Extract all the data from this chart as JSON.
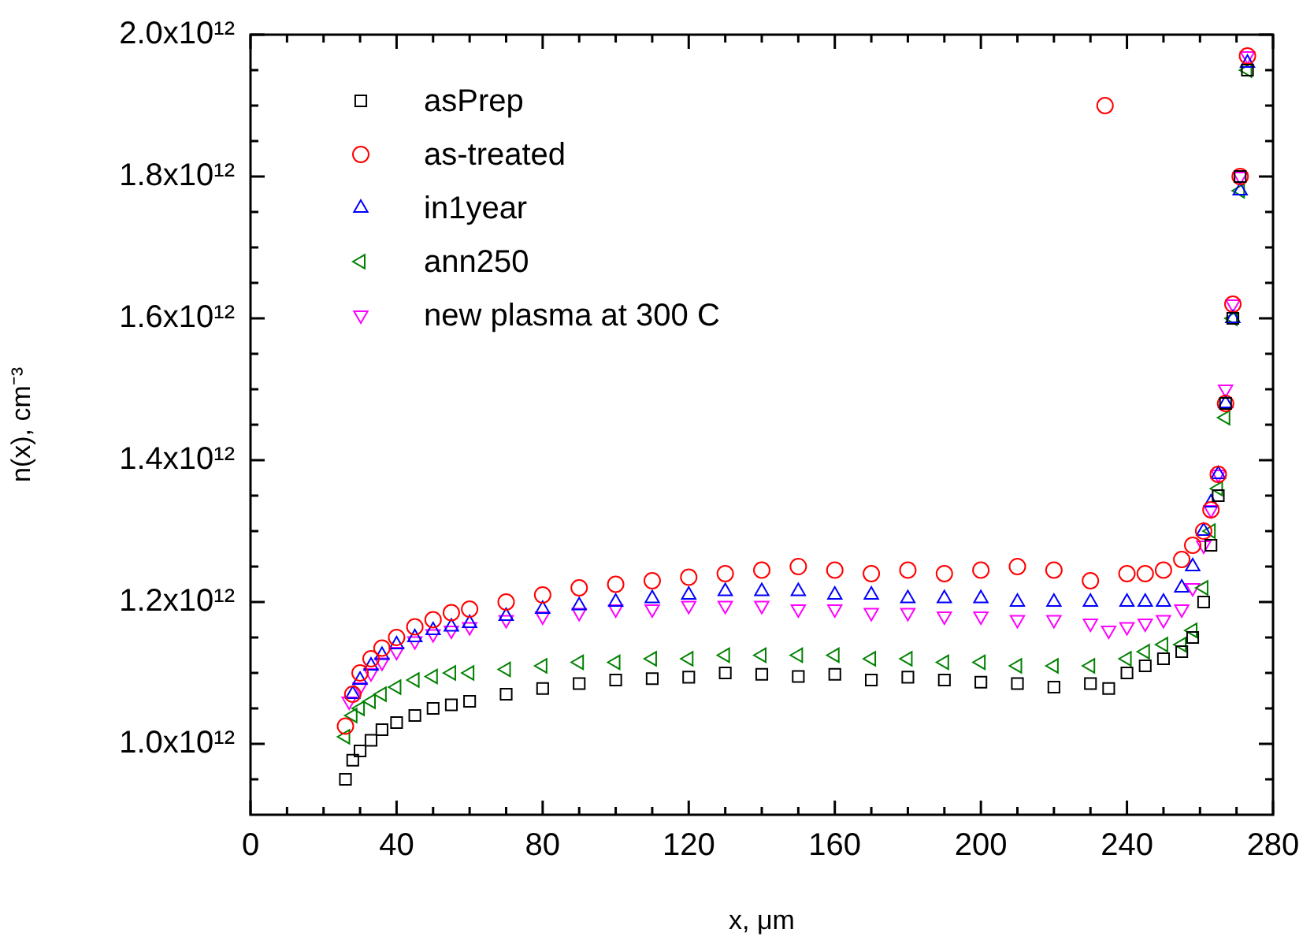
{
  "chart_data": {
    "type": "scatter",
    "xlabel": "x, μm",
    "ylabel": "n(x), cm⁻³",
    "xlim": [
      0,
      280
    ],
    "xticks": [
      0,
      40,
      80,
      120,
      160,
      200,
      240,
      280
    ],
    "ylim": [
      900000000000.0,
      2000000000000.0
    ],
    "yticks": [
      {
        "value": 1000000000000.0,
        "label": "1.0x10¹²"
      },
      {
        "value": 1200000000000.0,
        "label": "1.2x10¹²"
      },
      {
        "value": 1400000000000.0,
        "label": "1.4x10¹²"
      },
      {
        "value": 1600000000000.0,
        "label": "1.6x10¹²"
      },
      {
        "value": 1800000000000.0,
        "label": "1.8x10¹²"
      },
      {
        "value": 2000000000000.0,
        "label": "2.0x10¹²"
      }
    ],
    "grid": false,
    "legend": "top left",
    "series": [
      {
        "name": "asPrep",
        "color": "#000000",
        "marker": "square",
        "x": [
          26,
          28,
          30,
          33,
          36,
          40,
          45,
          50,
          55,
          60,
          70,
          80,
          90,
          100,
          110,
          120,
          130,
          140,
          150,
          160,
          170,
          180,
          190,
          200,
          210,
          220,
          230,
          235,
          240,
          245,
          250,
          255,
          258,
          261,
          263,
          265,
          267,
          269,
          271,
          273
        ],
        "values": [
          950000000000.0,
          977000000000.0,
          990000000000.0,
          1005000000000.0,
          1020000000000.0,
          1030000000000.0,
          1040000000000.0,
          1050000000000.0,
          1055000000000.0,
          1060000000000.0,
          1070000000000.0,
          1078000000000.0,
          1085000000000.0,
          1090000000000.0,
          1092000000000.0,
          1094000000000.0,
          1100000000000.0,
          1098000000000.0,
          1095000000000.0,
          1098000000000.0,
          1090000000000.0,
          1094000000000.0,
          1090000000000.0,
          1087000000000.0,
          1085000000000.0,
          1080000000000.0,
          1085000000000.0,
          1078000000000.0,
          1100000000000.0,
          1110000000000.0,
          1120000000000.0,
          1130000000000.0,
          1150000000000.0,
          1200000000000.0,
          1280000000000.0,
          1350000000000.0,
          1480000000000.0,
          1600000000000.0,
          1800000000000.0,
          1950000000000.0
        ]
      },
      {
        "name": "as-treated",
        "color": "#ff0000",
        "marker": "circle",
        "x": [
          26,
          28,
          30,
          33,
          36,
          40,
          45,
          50,
          55,
          60,
          70,
          80,
          90,
          100,
          110,
          120,
          130,
          140,
          150,
          160,
          170,
          180,
          190,
          200,
          210,
          220,
          230,
          234,
          240,
          245,
          250,
          255,
          258,
          261,
          263,
          265,
          267,
          269,
          271,
          273
        ],
        "values": [
          1025000000000.0,
          1070000000000.0,
          1100000000000.0,
          1120000000000.0,
          1135000000000.0,
          1150000000000.0,
          1165000000000.0,
          1175000000000.0,
          1185000000000.0,
          1190000000000.0,
          1200000000000.0,
          1210000000000.0,
          1220000000000.0,
          1225000000000.0,
          1230000000000.0,
          1235000000000.0,
          1240000000000.0,
          1245000000000.0,
          1250000000000.0,
          1245000000000.0,
          1240000000000.0,
          1245000000000.0,
          1240000000000.0,
          1245000000000.0,
          1250000000000.0,
          1245000000000.0,
          1230000000000.0,
          1900000000000.0,
          1240000000000.0,
          1240000000000.0,
          1245000000000.0,
          1260000000000.0,
          1280000000000.0,
          1300000000000.0,
          1330000000000.0,
          1380000000000.0,
          1480000000000.0,
          1620000000000.0,
          1800000000000.0,
          1970000000000.0
        ]
      },
      {
        "name": "in1year",
        "color": "#0000ff",
        "marker": "triangle",
        "x": [
          28,
          30,
          33,
          36,
          40,
          45,
          50,
          55,
          60,
          70,
          80,
          90,
          100,
          110,
          120,
          130,
          140,
          150,
          160,
          170,
          180,
          190,
          200,
          210,
          220,
          230,
          240,
          245,
          250,
          255,
          258,
          261,
          263,
          265,
          267,
          269,
          271,
          273
        ],
        "values": [
          1070000000000.0,
          1090000000000.0,
          1110000000000.0,
          1125000000000.0,
          1140000000000.0,
          1150000000000.0,
          1160000000000.0,
          1165000000000.0,
          1170000000000.0,
          1180000000000.0,
          1190000000000.0,
          1195000000000.0,
          1200000000000.0,
          1205000000000.0,
          1210000000000.0,
          1215000000000.0,
          1215000000000.0,
          1215000000000.0,
          1210000000000.0,
          1210000000000.0,
          1205000000000.0,
          1205000000000.0,
          1205000000000.0,
          1200000000000.0,
          1200000000000.0,
          1200000000000.0,
          1200000000000.0,
          1200000000000.0,
          1200000000000.0,
          1220000000000.0,
          1250000000000.0,
          1300000000000.0,
          1340000000000.0,
          1380000000000.0,
          1480000000000.0,
          1600000000000.0,
          1780000000000.0,
          1960000000000.0
        ]
      },
      {
        "name": "ann250",
        "color": "#008000",
        "marker": "triangle-left",
        "x": [
          26,
          28,
          30,
          33,
          36,
          40,
          45,
          50,
          55,
          60,
          70,
          80,
          90,
          100,
          110,
          120,
          130,
          140,
          150,
          160,
          170,
          180,
          190,
          200,
          210,
          220,
          230,
          240,
          245,
          250,
          255,
          258,
          261,
          263,
          265,
          267,
          269,
          271,
          273
        ],
        "values": [
          1010000000000.0,
          1040000000000.0,
          1050000000000.0,
          1060000000000.0,
          1070000000000.0,
          1080000000000.0,
          1090000000000.0,
          1095000000000.0,
          1100000000000.0,
          1100000000000.0,
          1105000000000.0,
          1110000000000.0,
          1115000000000.0,
          1115000000000.0,
          1120000000000.0,
          1120000000000.0,
          1125000000000.0,
          1125000000000.0,
          1125000000000.0,
          1125000000000.0,
          1120000000000.0,
          1120000000000.0,
          1115000000000.0,
          1115000000000.0,
          1110000000000.0,
          1110000000000.0,
          1110000000000.0,
          1120000000000.0,
          1130000000000.0,
          1140000000000.0,
          1140000000000.0,
          1160000000000.0,
          1220000000000.0,
          1300000000000.0,
          1360000000000.0,
          1460000000000.0,
          1600000000000.0,
          1780000000000.0,
          1950000000000.0
        ]
      },
      {
        "name": "new plasma at 300 C",
        "color": "#ff00ff",
        "marker": "triangle-down",
        "x": [
          27,
          30,
          33,
          36,
          40,
          45,
          50,
          55,
          60,
          70,
          80,
          90,
          100,
          110,
          120,
          130,
          140,
          150,
          160,
          170,
          180,
          190,
          200,
          210,
          220,
          230,
          235,
          240,
          245,
          250,
          255,
          258,
          261,
          263,
          265,
          267,
          269,
          271,
          273
        ],
        "values": [
          1060000000000.0,
          1080000000000.0,
          1100000000000.0,
          1115000000000.0,
          1130000000000.0,
          1145000000000.0,
          1155000000000.0,
          1160000000000.0,
          1165000000000.0,
          1175000000000.0,
          1180000000000.0,
          1185000000000.0,
          1190000000000.0,
          1190000000000.0,
          1195000000000.0,
          1195000000000.0,
          1195000000000.0,
          1190000000000.0,
          1190000000000.0,
          1185000000000.0,
          1185000000000.0,
          1180000000000.0,
          1180000000000.0,
          1175000000000.0,
          1175000000000.0,
          1170000000000.0,
          1160000000000.0,
          1165000000000.0,
          1170000000000.0,
          1175000000000.0,
          1190000000000.0,
          1220000000000.0,
          1280000000000.0,
          1330000000000.0,
          1380000000000.0,
          1500000000000.0,
          1620000000000.0,
          1800000000000.0,
          1970000000000.0
        ]
      }
    ]
  }
}
